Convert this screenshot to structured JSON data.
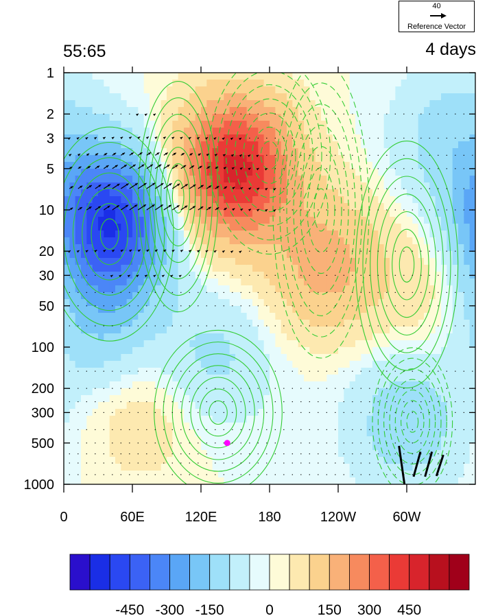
{
  "titles": {
    "left": "55:65",
    "right": "4 days"
  },
  "reference": {
    "magnitude": "40",
    "label": "Reference Vector"
  },
  "chart_data": {
    "type": "heatmap",
    "description_free": true,
    "x_ticks": [
      "0",
      "60E",
      "120E",
      "180",
      "120W",
      "60W"
    ],
    "x_tick_lon": [
      0,
      60,
      120,
      180,
      240,
      300
    ],
    "xlim": [
      0,
      360
    ],
    "y_ticks": [
      "1",
      "2",
      "3",
      "5",
      "10",
      "20",
      "30",
      "50",
      "100",
      "200",
      "300",
      "500",
      "1000"
    ],
    "y_tick_values": [
      1,
      2,
      3,
      5,
      10,
      20,
      30,
      50,
      100,
      200,
      300,
      500,
      1000
    ],
    "ylim": [
      1,
      1000
    ],
    "y_scale": "log",
    "y_reversed": true,
    "colorbar_ticks": [
      "-450",
      "-300",
      "-150",
      "0",
      "150",
      "300",
      "450"
    ],
    "colorbar_tick_values": [
      -450,
      -300,
      -150,
      0,
      150,
      300,
      450
    ],
    "colorbar_levels": [
      -600,
      -525,
      -450,
      -375,
      -300,
      -225,
      -150,
      -75,
      -25,
      0,
      25,
      75,
      150,
      225,
      300,
      375,
      450,
      525,
      600
    ],
    "colorbar_colors": [
      "#2a0fcc",
      "#1a2ee6",
      "#2a48f2",
      "#3b62f5",
      "#4b86f7",
      "#5aa6f6",
      "#78c6f7",
      "#9ee0f9",
      "#c2f0fb",
      "#e6fbfd",
      "#fefbd8",
      "#fde9b0",
      "#fbd28e",
      "#f9b178",
      "#f78a5e",
      "#f4604a",
      "#ea3a36",
      "#d8242c",
      "#b8101e",
      "#a0001a"
    ],
    "shaded_features": [
      {
        "lon": 40,
        "lev": 12,
        "value": -520
      },
      {
        "lon": 150,
        "lev": 5,
        "value": 480
      },
      {
        "lon": 230,
        "lev": 25,
        "value": 180
      },
      {
        "lon": 300,
        "lev": 350,
        "value": -120
      },
      {
        "lon": 30,
        "lev": 60,
        "value": -150
      },
      {
        "lon": 70,
        "lev": 300,
        "value": 60
      },
      {
        "lon": 130,
        "lev": 120,
        "value": -90
      },
      {
        "lon": 340,
        "lev": 3,
        "value": -110
      },
      {
        "lon": 325,
        "lev": 40,
        "value": 60
      }
    ],
    "contour_features": [
      {
        "lon": 40,
        "lev": 15,
        "value": 1.0,
        "sx": 40,
        "sy": 1.3
      },
      {
        "lon": 135,
        "lev": 300,
        "value": 1.2,
        "sx": 40,
        "sy": 1.0
      },
      {
        "lon": 180,
        "lev": 4,
        "value": -1.2,
        "sx": 38,
        "sy": 1.2
      },
      {
        "lon": 225,
        "lev": 10,
        "value": -1.0,
        "sx": 30,
        "sy": 1.8
      },
      {
        "lon": 300,
        "lev": 25,
        "value": 1.1,
        "sx": 32,
        "sy": 1.5
      },
      {
        "lon": 305,
        "lev": 350,
        "value": -0.9,
        "sx": 25,
        "sy": 0.9
      },
      {
        "lon": 100,
        "lev": 8,
        "value": 0.7,
        "sx": 25,
        "sy": 1.4
      }
    ],
    "contour_color": "#33cc33",
    "marker": {
      "lon": 143,
      "lev": 500,
      "color": "#ff00ff"
    },
    "vector_scale_ref": 40
  }
}
